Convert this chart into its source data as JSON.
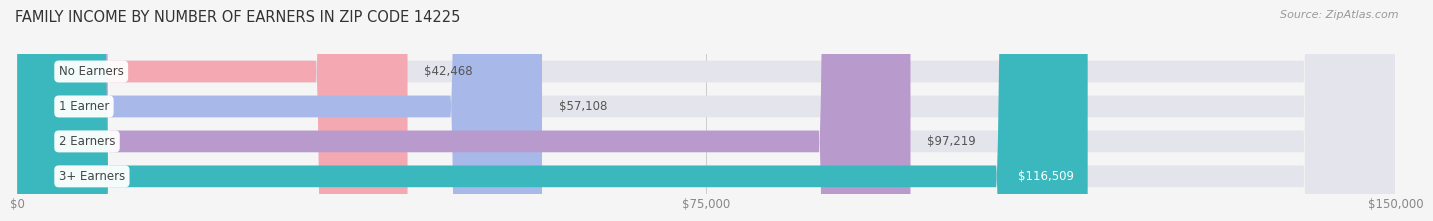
{
  "title": "FAMILY INCOME BY NUMBER OF EARNERS IN ZIP CODE 14225",
  "source": "Source: ZipAtlas.com",
  "categories": [
    "No Earners",
    "1 Earner",
    "2 Earners",
    "3+ Earners"
  ],
  "values": [
    42468,
    57108,
    97219,
    116509
  ],
  "labels": [
    "$42,468",
    "$57,108",
    "$97,219",
    "$116,509"
  ],
  "bar_colors": [
    "#f4a8b2",
    "#a8b8e8",
    "#b89acc",
    "#3ab8be"
  ],
  "bar_bg_color": "#e4e4ec",
  "xlim": [
    0,
    150000
  ],
  "xticks": [
    0,
    75000,
    150000
  ],
  "xticklabels": [
    "$0",
    "$75,000",
    "$150,000"
  ],
  "background_color": "#f5f5f5",
  "title_fontsize": 10.5,
  "bar_height": 0.62,
  "label_fontsize": 8.5,
  "category_fontsize": 8.5,
  "rounding_size": 10000
}
